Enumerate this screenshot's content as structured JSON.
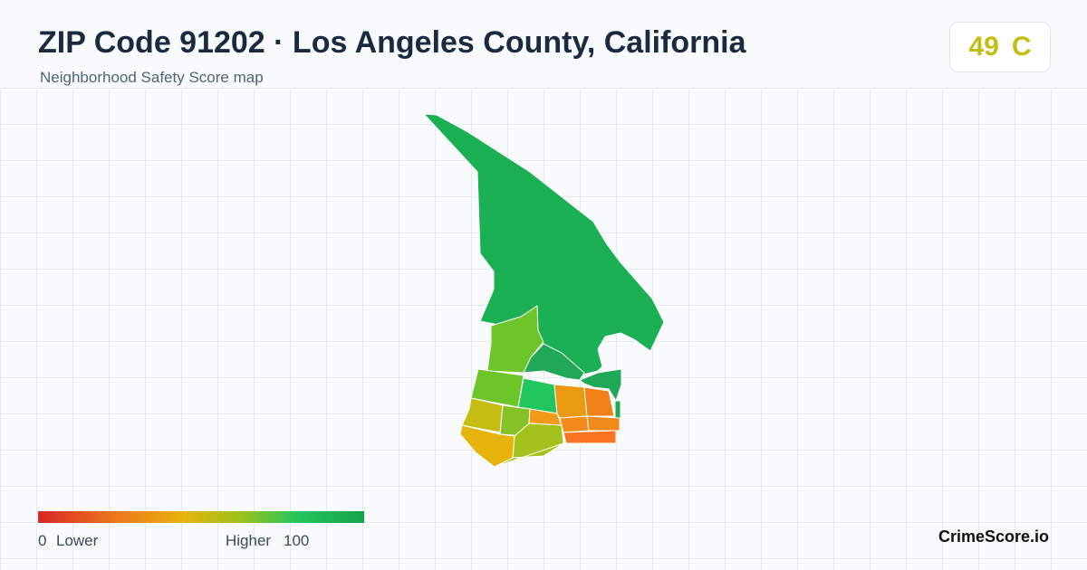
{
  "header": {
    "title": "ZIP Code 91202 · Los Angeles County, California",
    "subtitle": "Neighborhood Safety Score map"
  },
  "score": {
    "value": 49,
    "grade": "C"
  },
  "legend": {
    "min": 0,
    "min_label": "Lower",
    "max_label": "Higher",
    "max": 100
  },
  "brand": "CrimeScore.io"
}
